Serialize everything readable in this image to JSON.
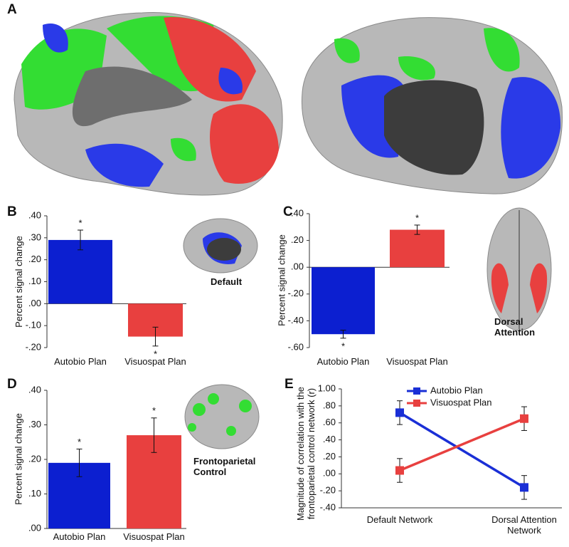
{
  "figure": {
    "panel_label": "A"
  },
  "chart_data": [
    {
      "type": "bar",
      "panel_label": "B",
      "ylabel": "Percent signal change",
      "categories": [
        "Autobio Plan",
        "Visuospat Plan"
      ],
      "values": [
        0.29,
        -0.15
      ],
      "errors": [
        0.045,
        0.043
      ],
      "significance": [
        "*",
        "*"
      ],
      "colors": [
        "#0c1fd0",
        "#e8403f"
      ],
      "network_label": "Default",
      "ylim": [
        -0.2,
        0.4
      ],
      "yticks": [
        {
          "value": 0.4,
          "label": ".40"
        },
        {
          "value": 0.3,
          "label": ".30"
        },
        {
          "value": 0.2,
          "label": ".20"
        },
        {
          "value": 0.1,
          "label": ".10"
        },
        {
          "value": 0,
          "label": ".00"
        },
        {
          "value": -0.1,
          "label": "-.10"
        },
        {
          "value": -0.2,
          "label": "-.20"
        }
      ]
    },
    {
      "type": "bar",
      "panel_label": "C",
      "ylabel": "Percent signal change",
      "categories": [
        "Autobio Plan",
        "Visuospat Plan"
      ],
      "values": [
        -0.5,
        0.28
      ],
      "errors": [
        0.03,
        0.035
      ],
      "significance": [
        "*",
        "*"
      ],
      "colors": [
        "#0c1fd0",
        "#e8403f"
      ],
      "network_label": "Dorsal Attention",
      "ylim": [
        -0.6,
        0.4
      ],
      "yticks": [
        {
          "value": 0.4,
          "label": ".40"
        },
        {
          "value": 0.2,
          "label": ".20"
        },
        {
          "value": 0,
          "label": ".00"
        },
        {
          "value": -0.2,
          "label": "-.20"
        },
        {
          "value": -0.4,
          "label": "-.40"
        },
        {
          "value": -0.6,
          "label": "-.60"
        }
      ]
    },
    {
      "type": "bar",
      "panel_label": "D",
      "ylabel": "Percent signal change",
      "categories": [
        "Autobio Plan",
        "Visuospat Plan"
      ],
      "values": [
        0.19,
        0.27
      ],
      "errors": [
        0.04,
        0.05
      ],
      "significance": [
        "*",
        "*"
      ],
      "colors": [
        "#0c1fd0",
        "#e8403f"
      ],
      "network_label": "Frontoparietal Control",
      "ylim": [
        0,
        0.4
      ],
      "yticks": [
        {
          "value": 0.4,
          "label": ".40"
        },
        {
          "value": 0.3,
          "label": ".30"
        },
        {
          "value": 0.2,
          "label": ".20"
        },
        {
          "value": 0.1,
          "label": ".10"
        },
        {
          "value": 0,
          "label": ".00"
        }
      ]
    },
    {
      "type": "line",
      "panel_label": "E",
      "ylabel": "Magnitude of correlation with the frontoparietal control network (r)",
      "categories": [
        "Default Network",
        "Dorsal Attention Network"
      ],
      "series": [
        {
          "name": "Autobio Plan",
          "color": "#1a2fd6",
          "values": [
            0.72,
            -0.16
          ],
          "errors": [
            0.14,
            0.14
          ]
        },
        {
          "name": "Visuospat Plan",
          "color": "#e8403f",
          "values": [
            0.04,
            0.65
          ],
          "errors": [
            0.14,
            0.14
          ]
        }
      ],
      "ylim": [
        -0.4,
        1.0
      ],
      "yticks": [
        {
          "value": 1.0,
          "label": "1.00"
        },
        {
          "value": 0.8,
          "label": ".80"
        },
        {
          "value": 0.6,
          "label": ".60"
        },
        {
          "value": 0.4,
          "label": ".40"
        },
        {
          "value": 0.2,
          "label": ".20"
        },
        {
          "value": 0,
          "label": ".00"
        },
        {
          "value": -0.2,
          "label": "-.20"
        },
        {
          "value": -0.4,
          "label": "-.40"
        }
      ]
    }
  ]
}
